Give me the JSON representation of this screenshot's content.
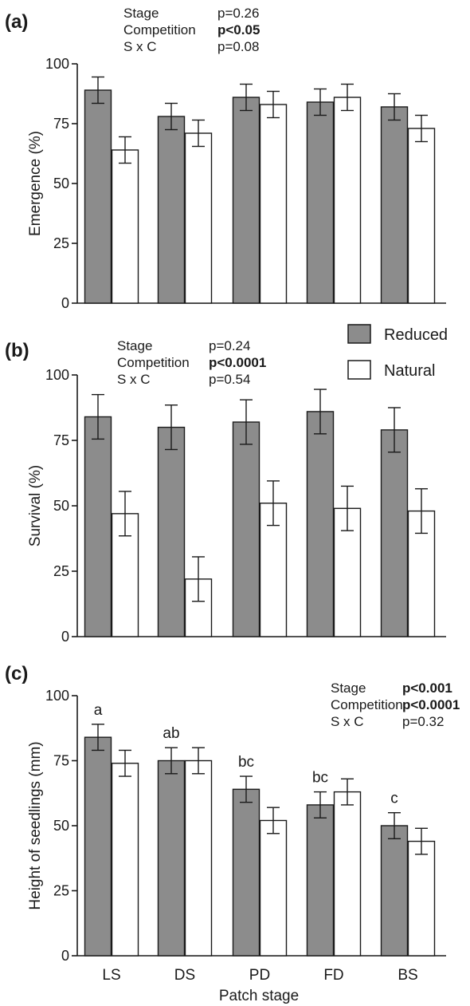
{
  "chart_data": [
    {
      "type": "bar",
      "panel_label": "(a)",
      "categories": [
        "LS",
        "DS",
        "PD",
        "FD",
        "BS"
      ],
      "series": [
        {
          "name": "Reduced",
          "values": [
            89,
            78,
            86,
            84,
            82
          ],
          "errors": [
            5.5,
            5.5,
            5.5,
            5.5,
            5.5
          ],
          "color": "#8c8c8c"
        },
        {
          "name": "Natural",
          "values": [
            64,
            71,
            83,
            86,
            73
          ],
          "errors": [
            5.5,
            5.5,
            5.5,
            5.5,
            5.5
          ],
          "color": "#ffffff"
        }
      ],
      "ylabel": "Emergence (%)",
      "ylim": [
        0,
        100
      ],
      "yticks": [
        "0",
        "25",
        "50",
        "75",
        "100"
      ],
      "stats": [
        {
          "term": "Stage",
          "p": "p=0.26",
          "bold": false
        },
        {
          "term": "Competition",
          "p": "p<0.05",
          "bold": true
        },
        {
          "term": "S x C",
          "p": "p=0.08",
          "bold": false
        }
      ],
      "group_letters": [],
      "legend": "none"
    },
    {
      "type": "bar",
      "panel_label": "(b)",
      "categories": [
        "LS",
        "DS",
        "PD",
        "FD",
        "BS"
      ],
      "series": [
        {
          "name": "Reduced",
          "values": [
            84,
            80,
            82,
            86,
            79
          ],
          "errors": [
            8.5,
            8.5,
            8.5,
            8.5,
            8.5
          ],
          "color": "#8c8c8c"
        },
        {
          "name": "Natural",
          "values": [
            47,
            22,
            51,
            49,
            48
          ],
          "errors": [
            8.5,
            8.5,
            8.5,
            8.5,
            8.5
          ],
          "color": "#ffffff"
        }
      ],
      "ylabel": "Survival (%)",
      "ylim": [
        0,
        100
      ],
      "yticks": [
        "0",
        "25",
        "50",
        "75",
        "100"
      ],
      "stats": [
        {
          "term": "Stage",
          "p": "p=0.24",
          "bold": false
        },
        {
          "term": "Competition",
          "p": "p<0.0001",
          "bold": true
        },
        {
          "term": "S x C",
          "p": "p=0.54",
          "bold": false
        }
      ],
      "group_letters": [],
      "legend": "top-right"
    },
    {
      "type": "bar",
      "panel_label": "(c)",
      "categories": [
        "LS",
        "DS",
        "PD",
        "FD",
        "BS"
      ],
      "series": [
        {
          "name": "Reduced",
          "values": [
            84,
            75,
            64,
            58,
            50
          ],
          "errors": [
            5,
            5,
            5,
            5,
            5
          ],
          "color": "#8c8c8c"
        },
        {
          "name": "Natural",
          "values": [
            74,
            75,
            52,
            63,
            44
          ],
          "errors": [
            5,
            5,
            5,
            5,
            5
          ],
          "color": "#ffffff"
        }
      ],
      "ylabel": "Height of seedlings (mm)",
      "xlabel": "Patch stage",
      "ylim": [
        0,
        100
      ],
      "yticks": [
        "0",
        "25",
        "50",
        "75",
        "100"
      ],
      "stats": [
        {
          "term": "Stage",
          "p": "p<0.001",
          "bold": true
        },
        {
          "term": "Competition",
          "p": "p<0.0001",
          "bold": true
        },
        {
          "term": "S x C",
          "p": "p=0.32",
          "bold": false
        }
      ],
      "group_letters": [
        "a",
        "ab",
        "bc",
        "bc",
        "c"
      ],
      "legend": "none"
    }
  ],
  "legend": {
    "items": [
      {
        "label": "Reduced",
        "color": "#8c8c8c"
      },
      {
        "label": "Natural",
        "color": "#ffffff"
      }
    ]
  }
}
